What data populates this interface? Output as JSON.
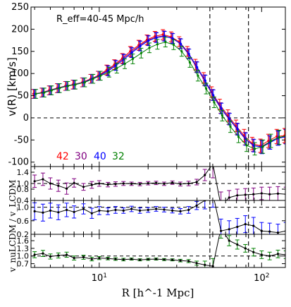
{
  "figure": {
    "annotation": "R_eff=40-45 Mpc/h",
    "xlabel": "R [h^-1 Mpc]",
    "shared_ylabel": "v_nuLCDM / v_LCDM",
    "vline_x": [
      48,
      83
    ],
    "legend_labels": [
      {
        "text": "42",
        "color": "#ff0000"
      },
      {
        "text": "30",
        "color": "#800080"
      },
      {
        "text": "40",
        "color": "#0000ff"
      },
      {
        "text": "32",
        "color": "#008000"
      }
    ]
  },
  "chart_data": [
    {
      "type": "line",
      "panel": "top",
      "ylabel": "v(R) [km/s]",
      "xscale": "log",
      "xlim": [
        3.8,
        140
      ],
      "ylim": [
        -110,
        250
      ],
      "yticks": [
        -100,
        -50,
        0,
        50,
        100,
        150,
        200,
        250
      ],
      "xticks": [
        {
          "value": 10,
          "label": "10^1"
        },
        {
          "value": 100,
          "label": "10^2"
        }
      ],
      "hline_y": 0,
      "x": [
        4,
        4.5,
        5,
        5.6,
        6.3,
        7,
        8,
        9,
        10,
        11.3,
        12.6,
        14.1,
        15.8,
        17.8,
        20,
        22.4,
        25.1,
        28.2,
        31.6,
        35.5,
        39.8,
        44.7,
        50.1,
        56.2,
        63.1,
        70.8,
        79.4,
        89.1,
        100,
        112,
        126,
        141
      ],
      "series": [
        {
          "color": "#ff0000",
          "values": [
            54,
            57,
            62,
            67,
            72,
            75,
            80,
            88,
            95,
            108,
            120,
            134,
            150,
            164,
            176,
            184,
            188,
            183,
            172,
            150,
            120,
            90,
            58,
            30,
            5,
            -18,
            -40,
            -58,
            -63,
            -52,
            -42,
            -40
          ],
          "err": [
            10,
            10,
            10,
            10,
            10,
            10,
            10,
            10,
            10,
            11,
            11,
            11,
            11,
            11,
            11,
            11,
            11,
            11,
            11,
            11,
            12,
            12,
            12,
            12,
            13,
            13,
            14,
            14,
            15,
            15,
            16,
            16
          ]
        },
        {
          "color": "#800080",
          "values": [
            54,
            57,
            62,
            67,
            72,
            75,
            80,
            88,
            95,
            107,
            119,
            133,
            148,
            163,
            175,
            182,
            185,
            180,
            168,
            145,
            115,
            85,
            52,
            22,
            -2,
            -25,
            -47,
            -62,
            -65,
            -55,
            -45,
            -42
          ],
          "err": [
            10,
            10,
            10,
            10,
            10,
            10,
            10,
            10,
            10,
            11,
            11,
            11,
            11,
            11,
            11,
            11,
            11,
            11,
            11,
            11,
            12,
            12,
            12,
            12,
            13,
            13,
            14,
            14,
            15,
            15,
            16,
            16
          ]
        },
        {
          "color": "#0000ff",
          "values": [
            54,
            57,
            62,
            67,
            72,
            75,
            80,
            88,
            95,
            106,
            118,
            132,
            147,
            162,
            174,
            181,
            184,
            179,
            167,
            144,
            114,
            84,
            51,
            21,
            -3,
            -26,
            -48,
            -63,
            -66,
            -56,
            -46,
            -43
          ],
          "err": [
            10,
            10,
            10,
            10,
            10,
            10,
            10,
            10,
            10,
            11,
            11,
            11,
            11,
            11,
            11,
            11,
            11,
            11,
            11,
            11,
            12,
            12,
            12,
            12,
            13,
            13,
            14,
            14,
            15,
            15,
            16,
            16
          ]
        },
        {
          "color": "#008000",
          "values": [
            54,
            57,
            62,
            67,
            72,
            75,
            80,
            88,
            95,
            103,
            112,
            122,
            133,
            146,
            158,
            166,
            171,
            165,
            150,
            125,
            95,
            66,
            35,
            5,
            -20,
            -43,
            -62,
            -70,
            -65,
            -52,
            -44,
            -40
          ],
          "err": [
            10,
            10,
            10,
            10,
            10,
            10,
            10,
            10,
            10,
            11,
            11,
            11,
            11,
            11,
            11,
            11,
            11,
            11,
            11,
            11,
            12,
            12,
            12,
            12,
            13,
            13,
            14,
            14,
            15,
            15,
            16,
            16
          ]
        }
      ]
    },
    {
      "type": "line",
      "panel": "ratio-30",
      "ylim": [
        0.4,
        1.6
      ],
      "yticks": [
        0.4,
        0.8,
        1.0,
        1.4
      ],
      "hline_y": 1.0,
      "x": [
        4,
        4.5,
        5,
        5.6,
        6.3,
        7,
        8,
        9,
        10,
        11.3,
        12.6,
        14.1,
        15.8,
        17.8,
        20,
        22.4,
        25.1,
        28.2,
        31.6,
        35.5,
        39.8,
        44.7,
        50.1,
        56.2,
        63.1,
        70.8,
        79.4,
        89.1,
        100,
        112,
        126,
        141
      ],
      "series": [
        {
          "color": "#800080",
          "values": [
            1.08,
            1.15,
            1.0,
            0.92,
            0.82,
            1.02,
            0.88,
            0.95,
            1.0,
            0.96,
            0.98,
            1.0,
            0.99,
            0.98,
            1.01,
            1.02,
            0.99,
            1.03,
            0.98,
            1.0,
            1.05,
            1.3,
            1.7,
            0.2,
            0.5,
            0.58,
            0.6,
            0.62,
            0.65,
            0.62,
            0.64,
            0.62
          ],
          "err": [
            0.22,
            0.22,
            0.2,
            0.2,
            0.2,
            0.15,
            0.12,
            0.12,
            0.1,
            0.08,
            0.08,
            0.07,
            0.06,
            0.06,
            0.06,
            0.06,
            0.06,
            0.06,
            0.07,
            0.08,
            0.1,
            0.2,
            0.5,
            0.5,
            0.25,
            0.22,
            0.22,
            0.22,
            0.22,
            0.25,
            0.25,
            0.25
          ]
        }
      ]
    },
    {
      "type": "line",
      "panel": "ratio-40",
      "ylim": [
        0.2,
        1.2
      ],
      "yticks": [
        0.2,
        0.6,
        1.0
      ],
      "hline_y": 1.0,
      "x": [
        4,
        4.5,
        5,
        5.6,
        6.3,
        7,
        8,
        9,
        10,
        11.3,
        12.6,
        14.1,
        15.8,
        17.8,
        20,
        22.4,
        25.1,
        28.2,
        31.6,
        35.5,
        39.8,
        44.7,
        50.1,
        56.2,
        63.1,
        70.8,
        79.4,
        89.1,
        100,
        112,
        126,
        141
      ],
      "series": [
        {
          "color": "#0000ff",
          "values": [
            0.88,
            0.84,
            0.9,
            0.85,
            0.92,
            0.86,
            0.95,
            0.82,
            0.9,
            0.88,
            0.92,
            0.9,
            0.95,
            0.9,
            0.92,
            0.95,
            0.93,
            0.9,
            0.88,
            0.92,
            1.05,
            1.2,
            1.4,
            0.3,
            0.35,
            0.42,
            0.5,
            0.45,
            0.3,
            0.28,
            0.25,
            0.3
          ],
          "err": [
            0.25,
            0.25,
            0.22,
            0.22,
            0.2,
            0.18,
            0.15,
            0.15,
            0.12,
            0.1,
            0.1,
            0.08,
            0.08,
            0.08,
            0.07,
            0.07,
            0.07,
            0.07,
            0.08,
            0.1,
            0.12,
            0.25,
            0.4,
            0.35,
            0.25,
            0.25,
            0.25,
            0.25,
            0.25,
            0.25,
            0.25,
            0.25
          ]
        }
      ]
    },
    {
      "type": "line",
      "panel": "ratio-32",
      "ylim": [
        0.55,
        1.85
      ],
      "yticks": [
        0.7,
        1.0,
        1.3,
        1.6
      ],
      "hline_y": 1.0,
      "x": [
        4,
        4.5,
        5,
        5.6,
        6.3,
        7,
        8,
        9,
        10,
        11.3,
        12.6,
        14.1,
        15.8,
        17.8,
        20,
        22.4,
        25.1,
        28.2,
        31.6,
        35.5,
        39.8,
        44.7,
        50.1,
        56.2,
        63.1,
        70.8,
        79.4,
        89.1,
        100,
        112,
        126,
        141
      ],
      "series": [
        {
          "color": "#008000",
          "values": [
            1.05,
            1.1,
            0.98,
            1.02,
            1.05,
            0.92,
            0.95,
            0.88,
            0.92,
            0.9,
            0.88,
            0.86,
            0.88,
            0.85,
            0.87,
            0.88,
            0.86,
            0.85,
            0.82,
            0.8,
            0.72,
            0.65,
            0.6,
            2.1,
            1.6,
            1.45,
            1.3,
            1.15,
            1.05,
            1.0,
            1.08,
            1.05
          ],
          "err": [
            0.12,
            0.12,
            0.1,
            0.1,
            0.1,
            0.08,
            0.08,
            0.07,
            0.06,
            0.05,
            0.05,
            0.05,
            0.04,
            0.04,
            0.04,
            0.04,
            0.04,
            0.04,
            0.05,
            0.06,
            0.08,
            0.15,
            0.3,
            0.4,
            0.2,
            0.18,
            0.15,
            0.15,
            0.15,
            0.15,
            0.15,
            0.15
          ]
        }
      ]
    }
  ]
}
